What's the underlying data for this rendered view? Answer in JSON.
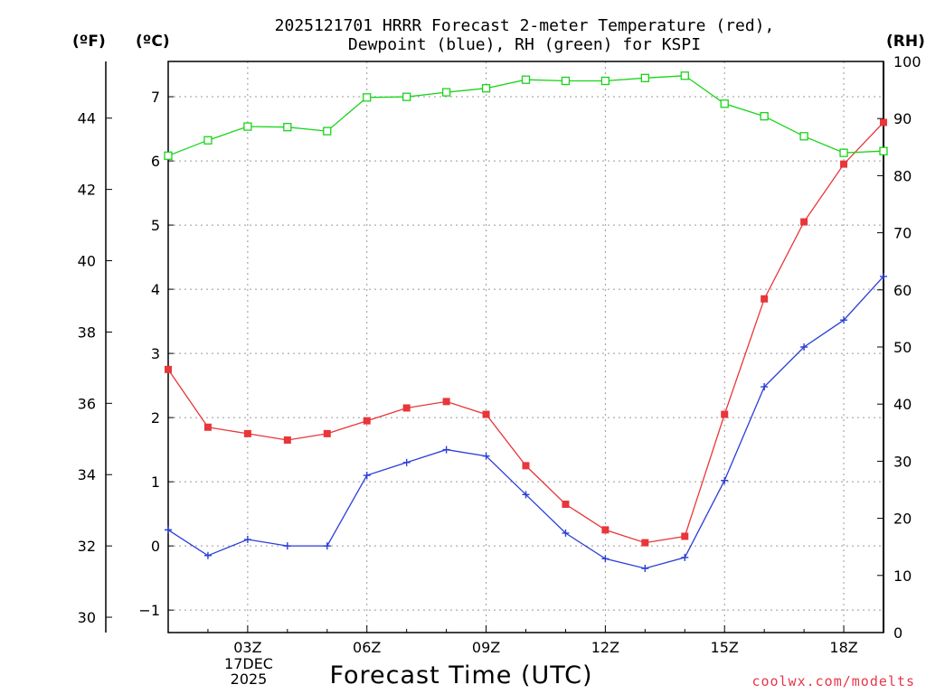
{
  "title_line1": "2025121701 HRRR Forecast 2-meter Temperature (red),",
  "title_line2": "Dewpoint (blue), RH (green) for KSPI",
  "unit_f": "(ºF)",
  "unit_c": "(ºC)",
  "unit_rh": "(RH)",
  "x_axis_title": "Forecast Time (UTC)",
  "credit": "coolwx.com/modelts",
  "date_label": {
    "line1": "17DEC",
    "line2": "2025"
  },
  "colors": {
    "temperature": "#e8363a",
    "dewpoint": "#2a3ed8",
    "rh": "#18d418",
    "grid": "#999999"
  },
  "chart_data": {
    "type": "line",
    "title": "2025121701 HRRR Forecast 2-meter Temperature (red), Dewpoint (blue), RH (green) for KSPI",
    "xlabel": "Forecast Time (UTC)",
    "x": [
      1,
      2,
      3,
      4,
      5,
      6,
      7,
      8,
      9,
      10,
      11,
      12,
      13,
      14,
      15,
      16,
      17,
      18,
      19
    ],
    "xlim": [
      1,
      19
    ],
    "x_ticks": [
      3,
      6,
      9,
      12,
      15,
      18
    ],
    "x_tick_labels": [
      "03Z",
      "06Z",
      "09Z",
      "12Z",
      "15Z",
      "18Z"
    ],
    "celsius_axis": {
      "label": "(ºC)",
      "ylim": [
        -1.35,
        7.55
      ],
      "ticks": [
        -1,
        0,
        1,
        2,
        3,
        4,
        5,
        6,
        7
      ]
    },
    "fahrenheit_axis": {
      "label": "(ºF)",
      "ticks": [
        30,
        32,
        34,
        36,
        38,
        40,
        42,
        44
      ]
    },
    "rh_axis": {
      "label": "(RH)",
      "ylim": [
        0,
        100
      ],
      "ticks": [
        0,
        10,
        20,
        30,
        40,
        50,
        60,
        70,
        80,
        90,
        100
      ]
    },
    "grid": true,
    "series": [
      {
        "name": "Temperature",
        "units": "C",
        "marker": "filled-square",
        "values": [
          2.75,
          1.85,
          1.75,
          1.65,
          1.75,
          1.95,
          2.15,
          2.25,
          2.05,
          1.25,
          0.65,
          0.25,
          0.05,
          0.15,
          2.05,
          3.85,
          5.05,
          5.95,
          6.6
        ]
      },
      {
        "name": "Dewpoint",
        "units": "C",
        "marker": "plus",
        "values": [
          0.25,
          -0.15,
          0.1,
          0.0,
          0.0,
          1.1,
          1.3,
          1.5,
          1.4,
          0.8,
          0.2,
          -0.2,
          -0.35,
          -0.18,
          1.02,
          2.48,
          3.1,
          3.52,
          4.2
        ]
      },
      {
        "name": "RH",
        "units": "%",
        "marker": "open-square",
        "values": [
          83.5,
          86.2,
          88.6,
          88.5,
          87.8,
          93.7,
          93.8,
          94.6,
          95.3,
          96.8,
          96.6,
          96.6,
          97.1,
          97.5,
          92.6,
          90.4,
          86.9,
          84.0,
          84.3
        ]
      }
    ]
  }
}
